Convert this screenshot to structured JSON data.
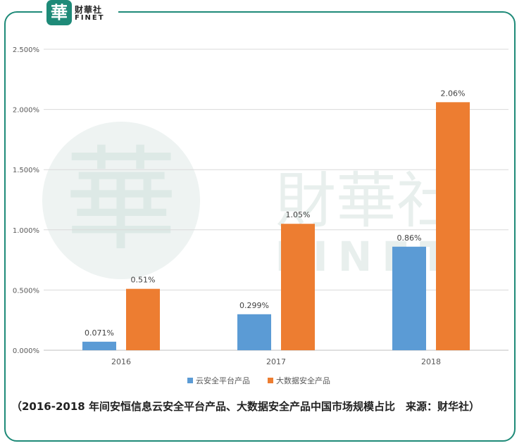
{
  "logo": {
    "badge_char": "華",
    "name_cn": "财華社",
    "name_en": "FINET"
  },
  "watermark": {
    "big_char": "華",
    "cn": "財華社",
    "en": "FINET"
  },
  "colors": {
    "series_blue": "#5b9bd5",
    "series_orange": "#ed7d31",
    "frame": "#1e8a78",
    "watermark": "#e8efed",
    "watermark_char": "#dde9e6"
  },
  "chart_data": {
    "type": "bar",
    "categories": [
      "2016",
      "2017",
      "2018"
    ],
    "series": [
      {
        "name": "云安全平台产品",
        "values": [
          0.071,
          0.299,
          0.86
        ],
        "labels": [
          "0.071%",
          "0.299%",
          "0.86%"
        ],
        "color": "#5b9bd5"
      },
      {
        "name": "大数据安全产品",
        "values": [
          0.51,
          1.05,
          2.06
        ],
        "labels": [
          "0.51%",
          "1.05%",
          "2.06%"
        ],
        "color": "#ed7d31"
      }
    ],
    "y_ticks": [
      0,
      0.5,
      1.0,
      1.5,
      2.0,
      2.5
    ],
    "y_tick_labels": [
      "0.000%",
      "0.500%",
      "1.000%",
      "1.500%",
      "2.000%",
      "2.500%"
    ],
    "ylim": [
      0,
      2.5
    ],
    "grid": true,
    "legend_position": "bottom"
  },
  "caption": "（2016-2018 年间安恒信息云安全平台产品、大数据安全产品中国市场规模占比　来源：财华社）"
}
